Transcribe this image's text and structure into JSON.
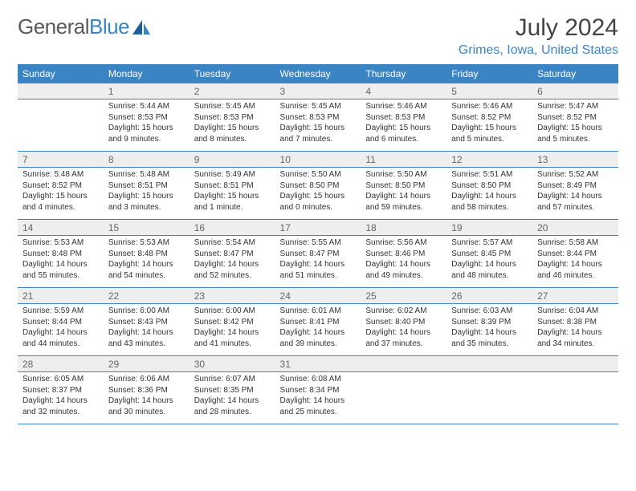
{
  "brand": {
    "name_left": "General",
    "name_right": "Blue"
  },
  "header": {
    "month_title": "July 2024",
    "location": "Grimes, Iowa, United States"
  },
  "colors": {
    "header_bg": "#3b84c4",
    "header_text": "#ffffff",
    "daynum_bg": "#eeeeee",
    "cell_border": "#3b84c4",
    "brand_gray": "#5a5a5a",
    "brand_blue": "#3b84c4"
  },
  "day_headers": [
    "Sunday",
    "Monday",
    "Tuesday",
    "Wednesday",
    "Thursday",
    "Friday",
    "Saturday"
  ],
  "weeks": [
    [
      null,
      {
        "n": "1",
        "text": "Sunrise: 5:44 AM\nSunset: 8:53 PM\nDaylight: 15 hours and 9 minutes."
      },
      {
        "n": "2",
        "text": "Sunrise: 5:45 AM\nSunset: 8:53 PM\nDaylight: 15 hours and 8 minutes."
      },
      {
        "n": "3",
        "text": "Sunrise: 5:45 AM\nSunset: 8:53 PM\nDaylight: 15 hours and 7 minutes."
      },
      {
        "n": "4",
        "text": "Sunrise: 5:46 AM\nSunset: 8:53 PM\nDaylight: 15 hours and 6 minutes."
      },
      {
        "n": "5",
        "text": "Sunrise: 5:46 AM\nSunset: 8:52 PM\nDaylight: 15 hours and 5 minutes."
      },
      {
        "n": "6",
        "text": "Sunrise: 5:47 AM\nSunset: 8:52 PM\nDaylight: 15 hours and 5 minutes."
      }
    ],
    [
      {
        "n": "7",
        "text": "Sunrise: 5:48 AM\nSunset: 8:52 PM\nDaylight: 15 hours and 4 minutes."
      },
      {
        "n": "8",
        "text": "Sunrise: 5:48 AM\nSunset: 8:51 PM\nDaylight: 15 hours and 3 minutes."
      },
      {
        "n": "9",
        "text": "Sunrise: 5:49 AM\nSunset: 8:51 PM\nDaylight: 15 hours and 1 minute."
      },
      {
        "n": "10",
        "text": "Sunrise: 5:50 AM\nSunset: 8:50 PM\nDaylight: 15 hours and 0 minutes."
      },
      {
        "n": "11",
        "text": "Sunrise: 5:50 AM\nSunset: 8:50 PM\nDaylight: 14 hours and 59 minutes."
      },
      {
        "n": "12",
        "text": "Sunrise: 5:51 AM\nSunset: 8:50 PM\nDaylight: 14 hours and 58 minutes."
      },
      {
        "n": "13",
        "text": "Sunrise: 5:52 AM\nSunset: 8:49 PM\nDaylight: 14 hours and 57 minutes."
      }
    ],
    [
      {
        "n": "14",
        "text": "Sunrise: 5:53 AM\nSunset: 8:48 PM\nDaylight: 14 hours and 55 minutes."
      },
      {
        "n": "15",
        "text": "Sunrise: 5:53 AM\nSunset: 8:48 PM\nDaylight: 14 hours and 54 minutes."
      },
      {
        "n": "16",
        "text": "Sunrise: 5:54 AM\nSunset: 8:47 PM\nDaylight: 14 hours and 52 minutes."
      },
      {
        "n": "17",
        "text": "Sunrise: 5:55 AM\nSunset: 8:47 PM\nDaylight: 14 hours and 51 minutes."
      },
      {
        "n": "18",
        "text": "Sunrise: 5:56 AM\nSunset: 8:46 PM\nDaylight: 14 hours and 49 minutes."
      },
      {
        "n": "19",
        "text": "Sunrise: 5:57 AM\nSunset: 8:45 PM\nDaylight: 14 hours and 48 minutes."
      },
      {
        "n": "20",
        "text": "Sunrise: 5:58 AM\nSunset: 8:44 PM\nDaylight: 14 hours and 46 minutes."
      }
    ],
    [
      {
        "n": "21",
        "text": "Sunrise: 5:59 AM\nSunset: 8:44 PM\nDaylight: 14 hours and 44 minutes."
      },
      {
        "n": "22",
        "text": "Sunrise: 6:00 AM\nSunset: 8:43 PM\nDaylight: 14 hours and 43 minutes."
      },
      {
        "n": "23",
        "text": "Sunrise: 6:00 AM\nSunset: 8:42 PM\nDaylight: 14 hours and 41 minutes."
      },
      {
        "n": "24",
        "text": "Sunrise: 6:01 AM\nSunset: 8:41 PM\nDaylight: 14 hours and 39 minutes."
      },
      {
        "n": "25",
        "text": "Sunrise: 6:02 AM\nSunset: 8:40 PM\nDaylight: 14 hours and 37 minutes."
      },
      {
        "n": "26",
        "text": "Sunrise: 6:03 AM\nSunset: 8:39 PM\nDaylight: 14 hours and 35 minutes."
      },
      {
        "n": "27",
        "text": "Sunrise: 6:04 AM\nSunset: 8:38 PM\nDaylight: 14 hours and 34 minutes."
      }
    ],
    [
      {
        "n": "28",
        "text": "Sunrise: 6:05 AM\nSunset: 8:37 PM\nDaylight: 14 hours and 32 minutes."
      },
      {
        "n": "29",
        "text": "Sunrise: 6:06 AM\nSunset: 8:36 PM\nDaylight: 14 hours and 30 minutes."
      },
      {
        "n": "30",
        "text": "Sunrise: 6:07 AM\nSunset: 8:35 PM\nDaylight: 14 hours and 28 minutes."
      },
      {
        "n": "31",
        "text": "Sunrise: 6:08 AM\nSunset: 8:34 PM\nDaylight: 14 hours and 25 minutes."
      },
      null,
      null,
      null
    ]
  ]
}
